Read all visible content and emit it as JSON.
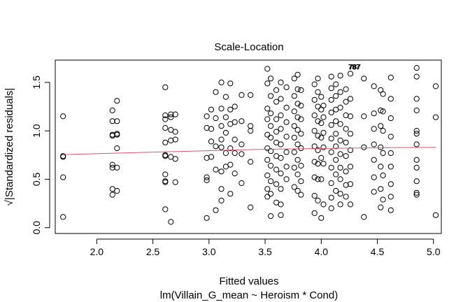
{
  "chart_data": {
    "type": "scatter",
    "title": "Scale-Location",
    "xlabel": "Fitted values",
    "sublabel": "lm(Villain_G_mean ~ Heroism * Cond)",
    "ylabel": "√|Standardized residuals|",
    "xlim": [
      1.63,
      5.07
    ],
    "ylim": [
      -0.06,
      1.73
    ],
    "xticks": [
      2.0,
      2.5,
      3.0,
      3.5,
      4.0,
      4.5,
      5.0
    ],
    "xtick_labels": [
      "2.0",
      "2.5",
      "3.0",
      "3.5",
      "4.0",
      "4.5",
      "5.0"
    ],
    "yticks": [
      0.0,
      0.5,
      1.0,
      1.5
    ],
    "ytick_labels": [
      "0.0",
      "0.5",
      "1.0",
      "1.5"
    ],
    "smooth_color": "#DF536B",
    "smooth_line": [
      [
        1.7,
        0.755
      ],
      [
        2.5,
        0.78
      ],
      [
        3.5,
        0.81
      ],
      [
        4.5,
        0.825
      ],
      [
        5.02,
        0.83
      ]
    ],
    "outlier_labels": {
      "text": "787",
      "x": 4.38,
      "y": 1.665
    },
    "columns": [
      {
        "x": 1.7,
        "y": [
          1.15,
          0.74,
          0.73,
          0.52,
          0.11
        ]
      },
      {
        "x": 2.14,
        "y": [
          1.21,
          1.1,
          0.96,
          0.95,
          0.65,
          0.62,
          0.4,
          0.34
        ]
      },
      {
        "x": 2.18,
        "y": [
          1.31,
          1.1,
          0.97,
          0.96,
          0.82,
          0.62,
          0.38
        ]
      },
      {
        "x": 2.61,
        "y": [
          1.45,
          1.16,
          1.12,
          1.03,
          0.88,
          0.75,
          0.74,
          0.55,
          0.48,
          0.47,
          0.19
        ]
      },
      {
        "x": 2.66,
        "y": [
          1.17,
          1.14,
          1.01,
          0.9,
          0.73,
          0.06
        ]
      },
      {
        "x": 2.7,
        "y": [
          1.17,
          0.99,
          0.91,
          0.71,
          0.47
        ]
      },
      {
        "x": 2.98,
        "y": [
          1.15,
          1.03,
          0.72,
          0.52,
          0.49,
          0.1
        ]
      },
      {
        "x": 3.02,
        "y": [
          1.22,
          1.02,
          0.89,
          0.73
        ]
      },
      {
        "x": 3.06,
        "y": [
          1.4,
          1.13,
          0.84,
          0.6,
          0.18
        ]
      },
      {
        "x": 3.11,
        "y": [
          1.5,
          1.23,
          1.05,
          0.91,
          0.83,
          0.58,
          0.4,
          0.28
        ]
      },
      {
        "x": 3.15,
        "y": [
          1.35,
          1.14,
          0.98,
          0.77,
          0.63
        ]
      },
      {
        "x": 3.19,
        "y": [
          1.49,
          1.22,
          1.07,
          0.82,
          0.65,
          0.35
        ]
      },
      {
        "x": 3.23,
        "y": [
          1.25,
          1.09,
          0.91,
          0.77,
          0.56
        ]
      },
      {
        "x": 3.29,
        "y": [
          1.37,
          1.1,
          0.86,
          0.76,
          0.46
        ]
      },
      {
        "x": 3.37,
        "y": [
          1.37,
          1.05,
          1.0,
          0.68,
          0.21
        ]
      },
      {
        "x": 3.52,
        "y": [
          1.64,
          1.49,
          1.23,
          1.12,
          0.96,
          0.82,
          0.7,
          0.54,
          0.4,
          0.32
        ]
      },
      {
        "x": 3.55,
        "y": [
          1.54,
          1.36,
          1.18,
          1.05,
          0.93,
          0.79,
          0.64,
          0.48,
          0.35,
          0.12
        ]
      },
      {
        "x": 3.6,
        "y": [
          1.42,
          1.3,
          1.12,
          0.99,
          0.88,
          0.74,
          0.6,
          0.45,
          0.26
        ]
      },
      {
        "x": 3.64,
        "y": [
          1.5,
          1.33,
          1.16,
          1.02,
          0.86,
          0.72,
          0.56,
          0.4,
          0.24,
          0.13
        ]
      },
      {
        "x": 3.69,
        "y": [
          1.45,
          1.24,
          1.09,
          0.94,
          0.78,
          0.63,
          0.5
        ]
      },
      {
        "x": 3.76,
        "y": [
          1.54,
          1.36,
          1.2,
          1.05,
          0.93,
          0.78,
          0.62,
          0.42
        ]
      },
      {
        "x": 3.79,
        "y": [
          1.58,
          1.43,
          1.28,
          1.14,
          1.01,
          0.86,
          0.7,
          0.55,
          0.38
        ]
      },
      {
        "x": 3.82,
        "y": [
          1.42,
          1.26,
          1.12,
          0.97,
          0.82,
          0.64,
          0.48,
          0.34
        ]
      },
      {
        "x": 3.94,
        "y": [
          1.48,
          1.32,
          1.16,
          1.0,
          0.84,
          0.68,
          0.52,
          0.33,
          0.15
        ]
      },
      {
        "x": 3.97,
        "y": [
          1.54,
          1.4,
          1.25,
          1.1,
          0.95,
          0.8,
          0.66,
          0.5,
          0.28
        ]
      },
      {
        "x": 4.0,
        "y": [
          1.35,
          1.22,
          1.08,
          0.93,
          0.72,
          0.5,
          0.1
        ]
      },
      {
        "x": 4.02,
        "y": [
          1.26,
          1.14,
          0.98,
          0.83,
          0.66,
          0.24
        ]
      },
      {
        "x": 4.09,
        "y": [
          1.56,
          1.44,
          1.32,
          1.19,
          1.06,
          0.92,
          0.78,
          0.62,
          0.46,
          0.31,
          0.2
        ]
      },
      {
        "x": 4.13,
        "y": [
          1.48,
          1.36,
          1.22,
          1.1,
          0.97,
          0.84,
          0.7,
          0.55,
          0.38
        ]
      },
      {
        "x": 4.17,
        "y": [
          1.57,
          1.4,
          1.24,
          1.07,
          0.9,
          0.76,
          0.62,
          0.5,
          0.35,
          0.24
        ]
      },
      {
        "x": 4.22,
        "y": [
          1.43,
          1.3,
          1.16,
          1.02,
          0.88,
          0.74,
          0.58,
          0.44,
          0.32
        ]
      },
      {
        "x": 4.26,
        "y": [
          1.59,
          1.33,
          1.15,
          0.97,
          0.8,
          0.63,
          0.45,
          0.24
        ]
      },
      {
        "x": 4.38,
        "y": [
          1.54,
          1.15,
          0.83,
          0.11
        ]
      },
      {
        "x": 4.47,
        "y": [
          1.46,
          1.18,
          1.02,
          0.86,
          0.7,
          0.52,
          0.37
        ]
      },
      {
        "x": 4.53,
        "y": [
          1.42,
          1.21,
          1.05,
          0.83,
          0.63,
          0.4,
          0.21
        ]
      },
      {
        "x": 4.55,
        "y": [
          1.38,
          1.2,
          1.0,
          0.77,
          0.54,
          0.29
        ]
      },
      {
        "x": 4.62,
        "y": [
          1.55,
          1.33,
          1.13,
          0.94,
          0.77,
          0.63,
          0.45,
          0.32,
          0.18
        ]
      },
      {
        "x": 4.85,
        "y": [
          1.65,
          1.56,
          1.33,
          1.21,
          1.0,
          0.97,
          0.86,
          0.7,
          0.62,
          0.48,
          0.36,
          0.34
        ]
      },
      {
        "x": 5.02,
        "y": [
          1.46,
          1.14,
          0.13
        ]
      }
    ]
  }
}
